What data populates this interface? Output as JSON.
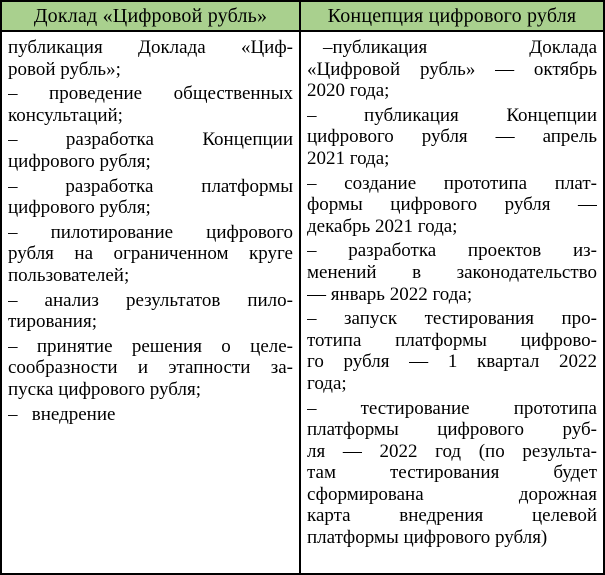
{
  "table": {
    "columns": [
      {
        "header": "Доклад «Цифровой рубль»",
        "items": [
          {
            "lines": [
              "публикация Доклада «Циф-",
              "ровой рубль»;"
            ]
          },
          {
            "lines": [
              "– проведение общественных",
              "консультаций;"
            ]
          },
          {
            "lines": [
              "– разработка Концепции",
              "цифрового рубля;"
            ]
          },
          {
            "lines": [
              "– разработка платформы",
              "цифрового рубля;"
            ]
          },
          {
            "lines": [
              "– пилотирование цифрового",
              "рубля на ограниченном круге",
              "пользователей;"
            ]
          },
          {
            "lines": [
              "– анализ результатов пило-",
              "тирования;"
            ]
          },
          {
            "lines": [
              "– принятие решения о целе-",
              "сообразности и этапности за-",
              "пуска цифрового рубля;"
            ]
          },
          {
            "lines": [
              "–   внедрение"
            ]
          }
        ]
      },
      {
        "header": "Концепция цифрового рубля",
        "items": [
          {
            "lines": [
              "–публикация Доклада",
              "«Цифровой рубль» — октябрь",
              "2020 года;"
            ]
          },
          {
            "lines": [
              "– публикация Концепции",
              "цифрового рубля — апрель",
              "2021 года;"
            ]
          },
          {
            "lines": [
              "– создание прототипа плат-",
              "формы цифрового рубля —",
              "декабрь 2021 года;"
            ]
          },
          {
            "lines": [
              "– разработка проектов из-",
              "менений в законодательство",
              "— январь 2022 года;"
            ]
          },
          {
            "lines": [
              "– запуск тестирования про-",
              "тотипа платформы цифрово-",
              "го рубля — 1 квартал 2022",
              "года;"
            ]
          },
          {
            "lines": [
              "– тестирование прототипа",
              "платформы цифрового руб-",
              "ля — 2022 год (по результа-",
              "там тестирования будет",
              "сформирована дорожная",
              "карта внедрения целевой",
              "платформы цифрового рубля)"
            ]
          }
        ]
      }
    ]
  },
  "colors": {
    "header_bg": "#a9d08e",
    "border": "#000000",
    "text": "#000000"
  }
}
